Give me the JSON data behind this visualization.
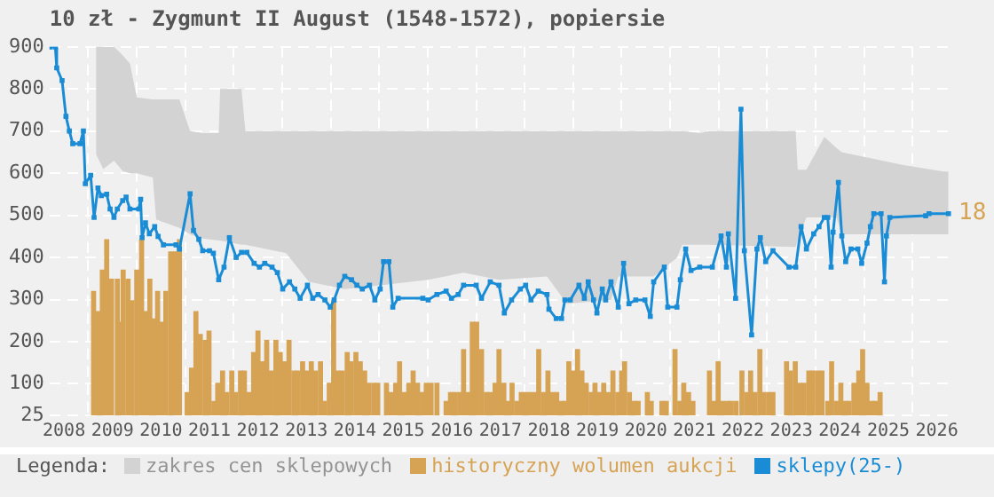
{
  "chart_data": {
    "type": "line",
    "title": "10 zł - Zygmunt II August (1548-1572), popiersie",
    "legend_title": "Legenda:",
    "legend": "bottom",
    "grid": true,
    "annotations": [
      "18"
    ],
    "xlim": [
      2007.7,
      2026.3
    ],
    "xticks": [
      2008,
      2009,
      2010,
      2011,
      2012,
      2013,
      2014,
      2015,
      2016,
      2017,
      2018,
      2019,
      2020,
      2021,
      2022,
      2023,
      2024,
      2025,
      2026
    ],
    "ylim": [
      25,
      900
    ],
    "yticks": [
      25,
      100,
      200,
      300,
      400,
      500,
      600,
      700,
      800,
      900
    ],
    "series": [
      {
        "type": "area",
        "name": "zakres cen sklepowych",
        "color": "#d3d3d3",
        "x": [
          2008.66,
          2008.81,
          2009.03,
          2009.21,
          2009.36,
          2009.5,
          2009.83,
          2009.9,
          2010.38,
          2010.6,
          2010.86,
          2011.19,
          2011.22,
          2011.66,
          2011.74,
          2012.58,
          2013.05,
          2013.79,
          2014.52,
          2015.51,
          2016.24,
          2016.97,
          2017.96,
          2018.18,
          2018.37,
          2019.28,
          2019.43,
          2020.16,
          2020.64,
          2020.75,
          2021.11,
          2021.3,
          2023.09,
          2023.13,
          2023.31,
          2023.68,
          2023.93,
          2024.04,
          2025.29,
          2026.13,
          2026.24
        ],
        "values": [
          null,
          null,
          null,
          null,
          null,
          null,
          null,
          null,
          null,
          null,
          null,
          null,
          null,
          null,
          null,
          null,
          null,
          null,
          null,
          null,
          null,
          null,
          null,
          null,
          null,
          null,
          null,
          null,
          null,
          null,
          null,
          null,
          null,
          null,
          null,
          null,
          null,
          null,
          null,
          null,
          null
        ],
        "upper": [
          900,
          900,
          900,
          880,
          860,
          780,
          775,
          775,
          775,
          700,
          695,
          695,
          800,
          800,
          700,
          700,
          700,
          700,
          700,
          700,
          700,
          700,
          700,
          700,
          700,
          700,
          700,
          700,
          700,
          700,
          695,
          700,
          700,
          608,
          608,
          686,
          660,
          650,
          620,
          604,
          604
        ],
        "lower": [
          645,
          610,
          630,
          605,
          600,
          600,
          590,
          490,
          470,
          455,
          445,
          440,
          440,
          430,
          430,
          410,
          342,
          325,
          334,
          347,
          364,
          347,
          355,
          320,
          290,
          299,
          355,
          355,
          399,
          430,
          430,
          430,
          425,
          440,
          495,
          495,
          495,
          455,
          455,
          455,
          455
        ]
      },
      {
        "type": "bar",
        "name": "historyczny wolumen aukcji",
        "color": "#d6a354",
        "x": [
          2008.61,
          2008.71,
          2008.79,
          2008.88,
          2008.98,
          2009.1,
          2009.16,
          2009.22,
          2009.32,
          2009.4,
          2009.5,
          2009.6,
          2009.68,
          2009.77,
          2009.86,
          2009.93,
          2010.01,
          2010.1,
          2010.2,
          2010.3,
          2010.38,
          2010.54,
          2010.63,
          2010.72,
          2010.81,
          2010.91,
          2010.99,
          2011.09,
          2011.17,
          2011.27,
          2011.36,
          2011.46,
          2011.54,
          2011.64,
          2011.72,
          2011.82,
          2011.91,
          2012,
          2012.09,
          2012.18,
          2012.27,
          2012.37,
          2012.46,
          2012.54,
          2012.64,
          2012.74,
          2012.82,
          2012.92,
          2013.01,
          2013.1,
          2013.19,
          2013.29,
          2013.37,
          2013.47,
          2013.56,
          2013.65,
          2013.74,
          2013.84,
          2013.92,
          2014.02,
          2014.11,
          2014.2,
          2014.29,
          2014.39,
          2014.47,
          2014.65,
          2014.74,
          2014.84,
          2014.92,
          2015.02,
          2015.11,
          2015.2,
          2015.29,
          2015.39,
          2015.47,
          2015.57,
          2015.69,
          2015.88,
          2015.97,
          2016.06,
          2016.16,
          2016.24,
          2016.33,
          2016.42,
          2016.51,
          2016.61,
          2016.71,
          2016.79,
          2016.89,
          2016.97,
          2017.07,
          2017.16,
          2017.24,
          2017.34,
          2017.43,
          2017.52,
          2017.61,
          2017.71,
          2017.79,
          2017.89,
          2017.98,
          2018.07,
          2018.16,
          2018.26,
          2018.34,
          2018.41,
          2018.5,
          2018.59,
          2018.68,
          2018.77,
          2018.87,
          2018.95,
          2019.05,
          2019.13,
          2019.23,
          2019.32,
          2019.42,
          2019.5,
          2019.56,
          2019.66,
          2019.75,
          2019.84,
          2020.03,
          2020.11,
          2020.33,
          2020.42,
          2020.6,
          2020.7,
          2020.78,
          2020.88,
          2020.97,
          2021.31,
          2021.4,
          2021.49,
          2021.58,
          2021.68,
          2021.76,
          2021.86,
          2021.98,
          2022.08,
          2022.16,
          2022.25,
          2022.35,
          2022.43,
          2022.53,
          2022.62,
          2022.9,
          2022.98,
          2023.08,
          2023.17,
          2023.26,
          2023.36,
          2023.44,
          2023.54,
          2023.63,
          2023.75,
          2023.83,
          2023.93,
          2024.02,
          2024.11,
          2024.19,
          2024.29,
          2024.39,
          2024.47,
          2024.56,
          2024.65,
          2024.73,
          2024.83
        ],
        "values": [
          319,
          271,
          370,
          442,
          348,
          348,
          246,
          370,
          348,
          297,
          370,
          442,
          271,
          348,
          254,
          319,
          246,
          319,
          413,
          413,
          442,
          79,
          137,
          271,
          217,
          203,
          225,
          58,
          101,
          130,
          79,
          130,
          79,
          130,
          130,
          79,
          174,
          225,
          152,
          203,
          130,
          203,
          174,
          152,
          203,
          130,
          130,
          152,
          130,
          152,
          130,
          152,
          58,
          101,
          297,
          130,
          130,
          174,
          152,
          174,
          152,
          130,
          101,
          101,
          101,
          101,
          79,
          101,
          152,
          79,
          101,
          130,
          101,
          79,
          101,
          101,
          101,
          58,
          79,
          79,
          79,
          181,
          79,
          246,
          246,
          181,
          79,
          79,
          101,
          181,
          101,
          58,
          101,
          58,
          79,
          79,
          79,
          79,
          181,
          79,
          130,
          79,
          79,
          58,
          58,
          152,
          130,
          181,
          130,
          101,
          79,
          101,
          79,
          101,
          79,
          130,
          79,
          130,
          152,
          79,
          58,
          58,
          79,
          58,
          58,
          58,
          181,
          58,
          101,
          79,
          58,
          130,
          58,
          152,
          58,
          58,
          58,
          58,
          130,
          79,
          130,
          79,
          181,
          79,
          79,
          79,
          152,
          130,
          152,
          101,
          101,
          130,
          130,
          130,
          130,
          58,
          152,
          58,
          101,
          58,
          58,
          101,
          130,
          181,
          101,
          58,
          58,
          79
        ]
      },
      {
        "marker": "square",
        "name": "sklepy(25-)",
        "color": "#1a8cd6",
        "x": [
          2007.71,
          2007.82,
          2007.85,
          2007.96,
          2008.04,
          2008.11,
          2008.18,
          2008.33,
          2008.4,
          2008.44,
          2008.55,
          2008.62,
          2008.7,
          2008.77,
          2008.88,
          2008.95,
          2009.03,
          2009.1,
          2009.21,
          2009.28,
          2009.36,
          2009.54,
          2009.58,
          2009.61,
          2009.68,
          2009.76,
          2009.87,
          2009.94,
          2010.05,
          2010.31,
          2010.38,
          2010.6,
          2010.67,
          2010.78,
          2010.86,
          2011,
          2011.08,
          2011.19,
          2011.3,
          2011.41,
          2011.55,
          2011.66,
          2011.77,
          2011.92,
          2012.03,
          2012.14,
          2012.29,
          2012.4,
          2012.51,
          2012.65,
          2012.76,
          2012.87,
          2013.02,
          2013.13,
          2013.24,
          2013.38,
          2013.49,
          2013.57,
          2013.68,
          2013.79,
          2013.93,
          2014.04,
          2014.15,
          2014.3,
          2014.41,
          2014.52,
          2014.59,
          2014.7,
          2014.78,
          2014.89,
          2015.4,
          2015.51,
          2015.69,
          2015.88,
          2015.99,
          2016.13,
          2016.24,
          2016.5,
          2016.61,
          2016.79,
          2016.97,
          2017.08,
          2017.23,
          2017.41,
          2017.52,
          2017.63,
          2017.78,
          2017.96,
          2018,
          2018.15,
          2018.26,
          2018.33,
          2018.44,
          2018.62,
          2018.73,
          2018.81,
          2018.92,
          2018.99,
          2019.1,
          2019.17,
          2019.28,
          2019.43,
          2019.54,
          2019.65,
          2019.79,
          2019.98,
          2020.09,
          2020.16,
          2020.38,
          2020.45,
          2020.64,
          2020.71,
          2020.82,
          2020.93,
          2021.11,
          2021.37,
          2021.55,
          2021.66,
          2021.7,
          2021.85,
          2021.96,
          2022.03,
          2022.18,
          2022.29,
          2022.36,
          2022.47,
          2022.62,
          2022.95,
          2023.09,
          2023.2,
          2023.31,
          2023.46,
          2023.57,
          2023.68,
          2023.75,
          2023.82,
          2023.86,
          2023.97,
          2024.04,
          2024.12,
          2024.23,
          2024.37,
          2024.45,
          2024.56,
          2024.63,
          2024.7,
          2024.85,
          2024.92,
          2024.96,
          2025.03,
          2025.77,
          2025.84,
          2026.24
        ],
        "values": [
          900,
          900,
          850,
          820,
          735,
          700,
          670,
          670,
          700,
          575,
          595,
          495,
          565,
          547,
          550,
          515,
          495,
          515,
          535,
          543,
          515,
          515,
          538,
          447,
          482,
          456,
          473,
          450,
          430,
          430,
          420,
          551,
          464,
          443,
          416,
          416,
          410,
          347,
          377,
          447,
          400,
          412,
          412,
          386,
          377,
          386,
          377,
          364,
          325,
          342,
          325,
          303,
          334,
          303,
          312,
          299,
          282,
          299,
          334,
          355,
          347,
          334,
          325,
          334,
          299,
          325,
          390,
          390,
          282,
          303,
          303,
          299,
          312,
          320,
          303,
          312,
          334,
          334,
          303,
          342,
          334,
          268,
          299,
          325,
          334,
          299,
          320,
          312,
          277,
          255,
          255,
          299,
          299,
          334,
          303,
          342,
          299,
          268,
          325,
          299,
          342,
          282,
          386,
          290,
          299,
          299,
          260,
          342,
          377,
          282,
          282,
          347,
          420,
          369,
          377,
          377,
          451,
          377,
          456,
          303,
          752,
          416,
          216,
          420,
          447,
          390,
          416,
          377,
          377,
          473,
          420,
          456,
          473,
          495,
          495,
          377,
          460,
          578,
          451,
          390,
          420,
          420,
          386,
          434,
          473,
          504,
          504,
          342,
          451,
          495,
          499,
          504,
          504
        ]
      }
    ]
  }
}
